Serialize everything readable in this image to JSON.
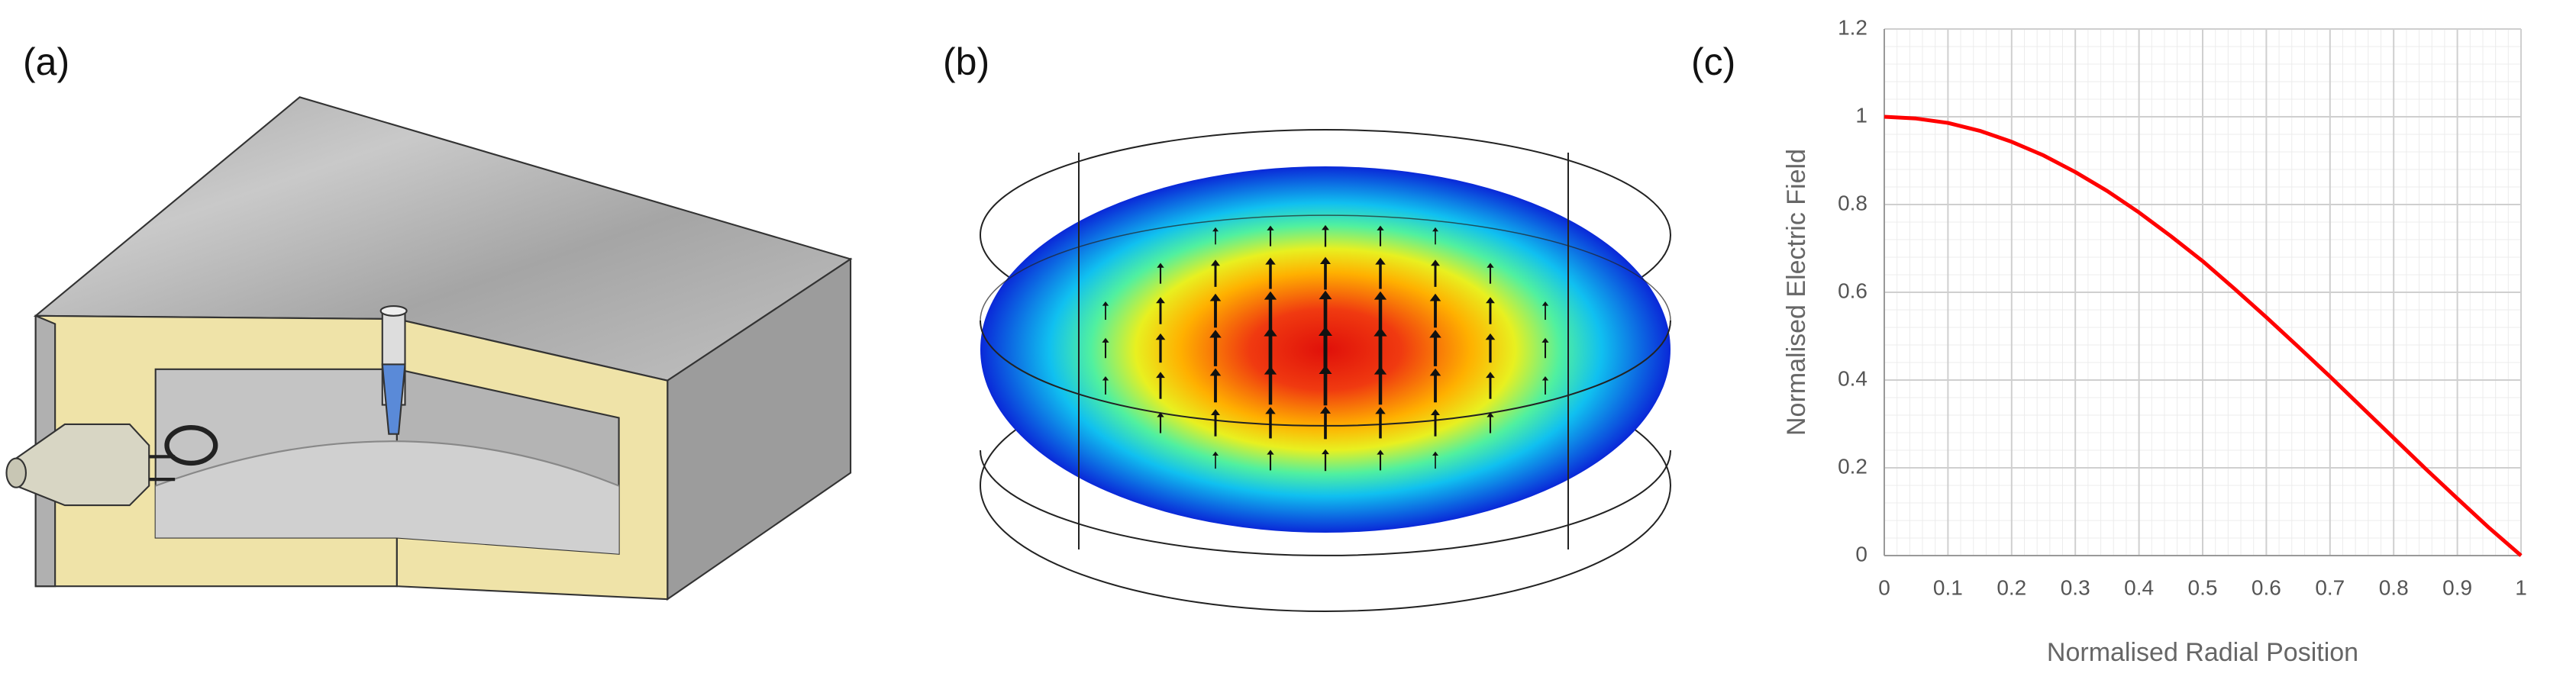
{
  "panel_labels": [
    "(a)",
    "(b)",
    "(c)"
  ],
  "chart_data": {
    "type": "line",
    "xlabel": "Normalised Radial Position",
    "ylabel": "Normalised Electric Field",
    "x": [
      0,
      0.05,
      0.1,
      0.15,
      0.2,
      0.25,
      0.3,
      0.35,
      0.4,
      0.45,
      0.5,
      0.55,
      0.6,
      0.65,
      0.7,
      0.75,
      0.8,
      0.85,
      0.9,
      0.95,
      1
    ],
    "values": [
      1,
      0.996,
      0.986,
      0.968,
      0.943,
      0.912,
      0.874,
      0.831,
      0.782,
      0.728,
      0.671,
      0.608,
      0.543,
      0.476,
      0.408,
      0.338,
      0.268,
      0.198,
      0.13,
      0.063,
      0
    ],
    "color": "#ff0000",
    "xlim": [
      0,
      1
    ],
    "xticks": [
      0,
      0.1,
      0.2,
      0.3,
      0.4,
      0.5,
      0.6,
      0.7,
      0.8,
      0.9,
      1
    ],
    "ylim": [
      0,
      1.2
    ],
    "yticks": [
      0,
      0.2,
      0.4,
      0.6,
      0.8,
      1,
      1.2
    ],
    "grid": true,
    "minor_grid": true
  }
}
